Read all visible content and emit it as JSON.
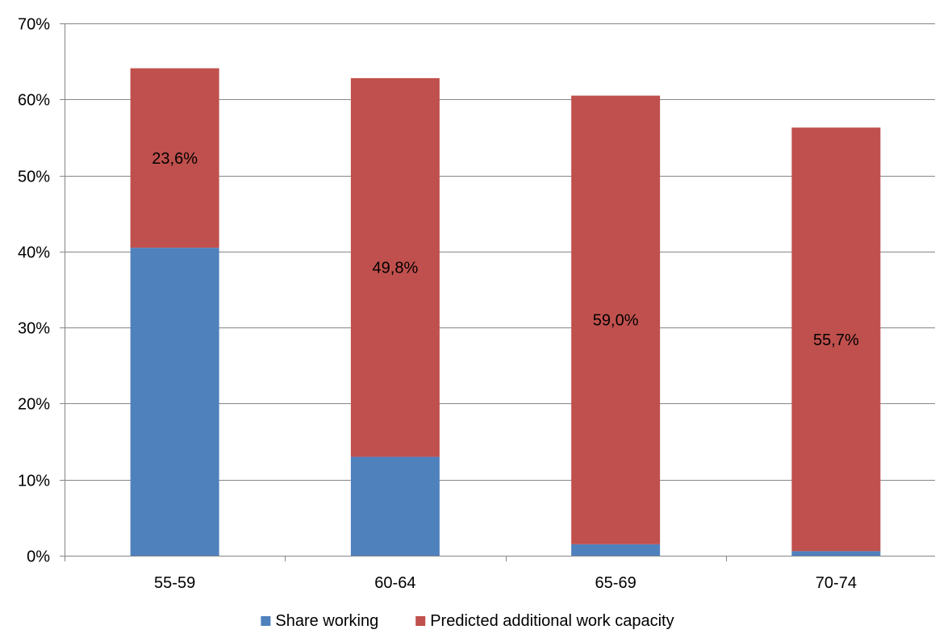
{
  "chart_data": {
    "type": "bar",
    "stacked": true,
    "categories": [
      "55-59",
      "60-64",
      "65-69",
      "70-74"
    ],
    "series": [
      {
        "name": "Share working",
        "color": "#4F81BD",
        "values": [
          40.5,
          13.0,
          1.5,
          0.6
        ]
      },
      {
        "name": "Predicted additional work capacity",
        "color": "#C0504D",
        "values": [
          23.6,
          49.8,
          59.0,
          55.7
        ]
      }
    ],
    "data_labels": [
      "23,6%",
      "49,8%",
      "59,0%",
      "55,7%"
    ],
    "y_ticks": [
      {
        "value": 0,
        "label": "0%"
      },
      {
        "value": 10,
        "label": "10%"
      },
      {
        "value": 20,
        "label": "20%"
      },
      {
        "value": 30,
        "label": "30%"
      },
      {
        "value": 40,
        "label": "40%"
      },
      {
        "value": 50,
        "label": "50%"
      },
      {
        "value": 60,
        "label": "60%"
      },
      {
        "value": 70,
        "label": "70%"
      }
    ],
    "ylim": [
      0,
      70
    ],
    "title": "",
    "xlabel": "",
    "ylabel": "",
    "grid": true,
    "legend_position": "bottom",
    "gridline_color": "#868686",
    "axis_color": "#868686"
  }
}
